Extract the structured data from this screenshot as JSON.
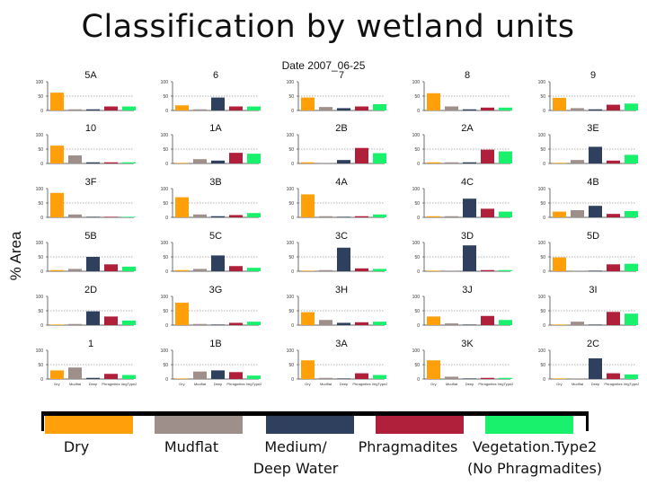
{
  "slide_title": "Classification by wetland units",
  "date_label": "Date 2007_06-25",
  "y_axis_label": "% Area",
  "colors": {
    "Dry": "#ff9f0a",
    "Mudflat": "#9e8f8a",
    "Medium/ Deep Water": "#2f3f5e",
    "Phragmadites": "#b0203a",
    "Vegetation.Type2 (No Phragmadites)": "#19f06c"
  },
  "legend": [
    {
      "key": "Dry",
      "label_lines": [
        "Dry"
      ]
    },
    {
      "key": "Mudflat",
      "label_lines": [
        "Mudflat"
      ]
    },
    {
      "key": "Medium/ Deep Water",
      "label_lines": [
        "Medium/",
        "Deep Water"
      ]
    },
    {
      "key": "Phragmadites",
      "label_lines": [
        "Phragmadites"
      ]
    },
    {
      "key": "Vegetation.Type2 (No Phragmadites)",
      "label_lines": [
        "Vegetation.Type2",
        "(No Phragmadites)"
      ]
    }
  ],
  "chart_data": {
    "type": "bar",
    "layout": "small-multiples",
    "categories": [
      "Dry",
      "Mudflat",
      "Deep",
      "Phragmites",
      "VegType2"
    ],
    "tick_labels_shown_on_bottom_row": [
      "Dry",
      "Mudflat",
      "Deep",
      "Phragmites",
      "VegType2"
    ],
    "ylim": [
      0,
      100
    ],
    "yticks": [
      0,
      50,
      100
    ],
    "grid": "dashed line at 50",
    "panels": [
      {
        "title": "5A",
        "values": [
          62,
          4,
          4,
          14,
          14
        ]
      },
      {
        "title": "6",
        "values": [
          18,
          4,
          45,
          14,
          14
        ]
      },
      {
        "title": "7",
        "values": [
          45,
          12,
          8,
          14,
          22
        ]
      },
      {
        "title": "8",
        "values": [
          60,
          14,
          4,
          10,
          10
        ]
      },
      {
        "title": "9",
        "values": [
          44,
          8,
          4,
          20,
          24
        ]
      },
      {
        "title": "10",
        "values": [
          62,
          28,
          4,
          4,
          4
        ]
      },
      {
        "title": "1A",
        "values": [
          2,
          15,
          10,
          37,
          34
        ]
      },
      {
        "title": "2B",
        "values": [
          4,
          2,
          12,
          54,
          36
        ]
      },
      {
        "title": "2A",
        "values": [
          4,
          4,
          4,
          48,
          42
        ]
      },
      {
        "title": "3E",
        "values": [
          2,
          12,
          58,
          10,
          30
        ]
      },
      {
        "title": "3F",
        "values": [
          85,
          10,
          2,
          2,
          2
        ]
      },
      {
        "title": "3B",
        "values": [
          70,
          10,
          4,
          8,
          15
        ]
      },
      {
        "title": "4A",
        "values": [
          80,
          4,
          2,
          4,
          10
        ]
      },
      {
        "title": "4C",
        "values": [
          4,
          4,
          65,
          30,
          20
        ]
      },
      {
        "title": "4B",
        "values": [
          20,
          25,
          40,
          12,
          22
        ]
      },
      {
        "title": "5B",
        "values": [
          4,
          8,
          50,
          24,
          16
        ]
      },
      {
        "title": "5C",
        "values": [
          4,
          8,
          55,
          18,
          12
        ]
      },
      {
        "title": "3C",
        "values": [
          2,
          4,
          82,
          10,
          8
        ]
      },
      {
        "title": "3D",
        "values": [
          2,
          2,
          90,
          4,
          4
        ]
      },
      {
        "title": "5D",
        "values": [
          48,
          2,
          2,
          24,
          26
        ]
      },
      {
        "title": "2D",
        "values": [
          2,
          4,
          48,
          30,
          16
        ]
      },
      {
        "title": "3G",
        "values": [
          78,
          4,
          2,
          8,
          12
        ]
      },
      {
        "title": "3H",
        "values": [
          45,
          18,
          8,
          10,
          12
        ]
      },
      {
        "title": "3J",
        "values": [
          30,
          6,
          2,
          32,
          18
        ]
      },
      {
        "title": "3I",
        "values": [
          2,
          12,
          2,
          46,
          40
        ]
      },
      {
        "title": "1",
        "values": [
          30,
          40,
          4,
          18,
          14
        ]
      },
      {
        "title": "1B",
        "values": [
          2,
          26,
          30,
          24,
          12
        ]
      },
      {
        "title": "3A",
        "values": [
          65,
          4,
          2,
          20,
          14
        ]
      },
      {
        "title": "3K",
        "values": [
          65,
          8,
          2,
          4,
          4
        ]
      },
      {
        "title": "2C",
        "values": [
          2,
          2,
          72,
          20,
          16
        ]
      }
    ]
  }
}
